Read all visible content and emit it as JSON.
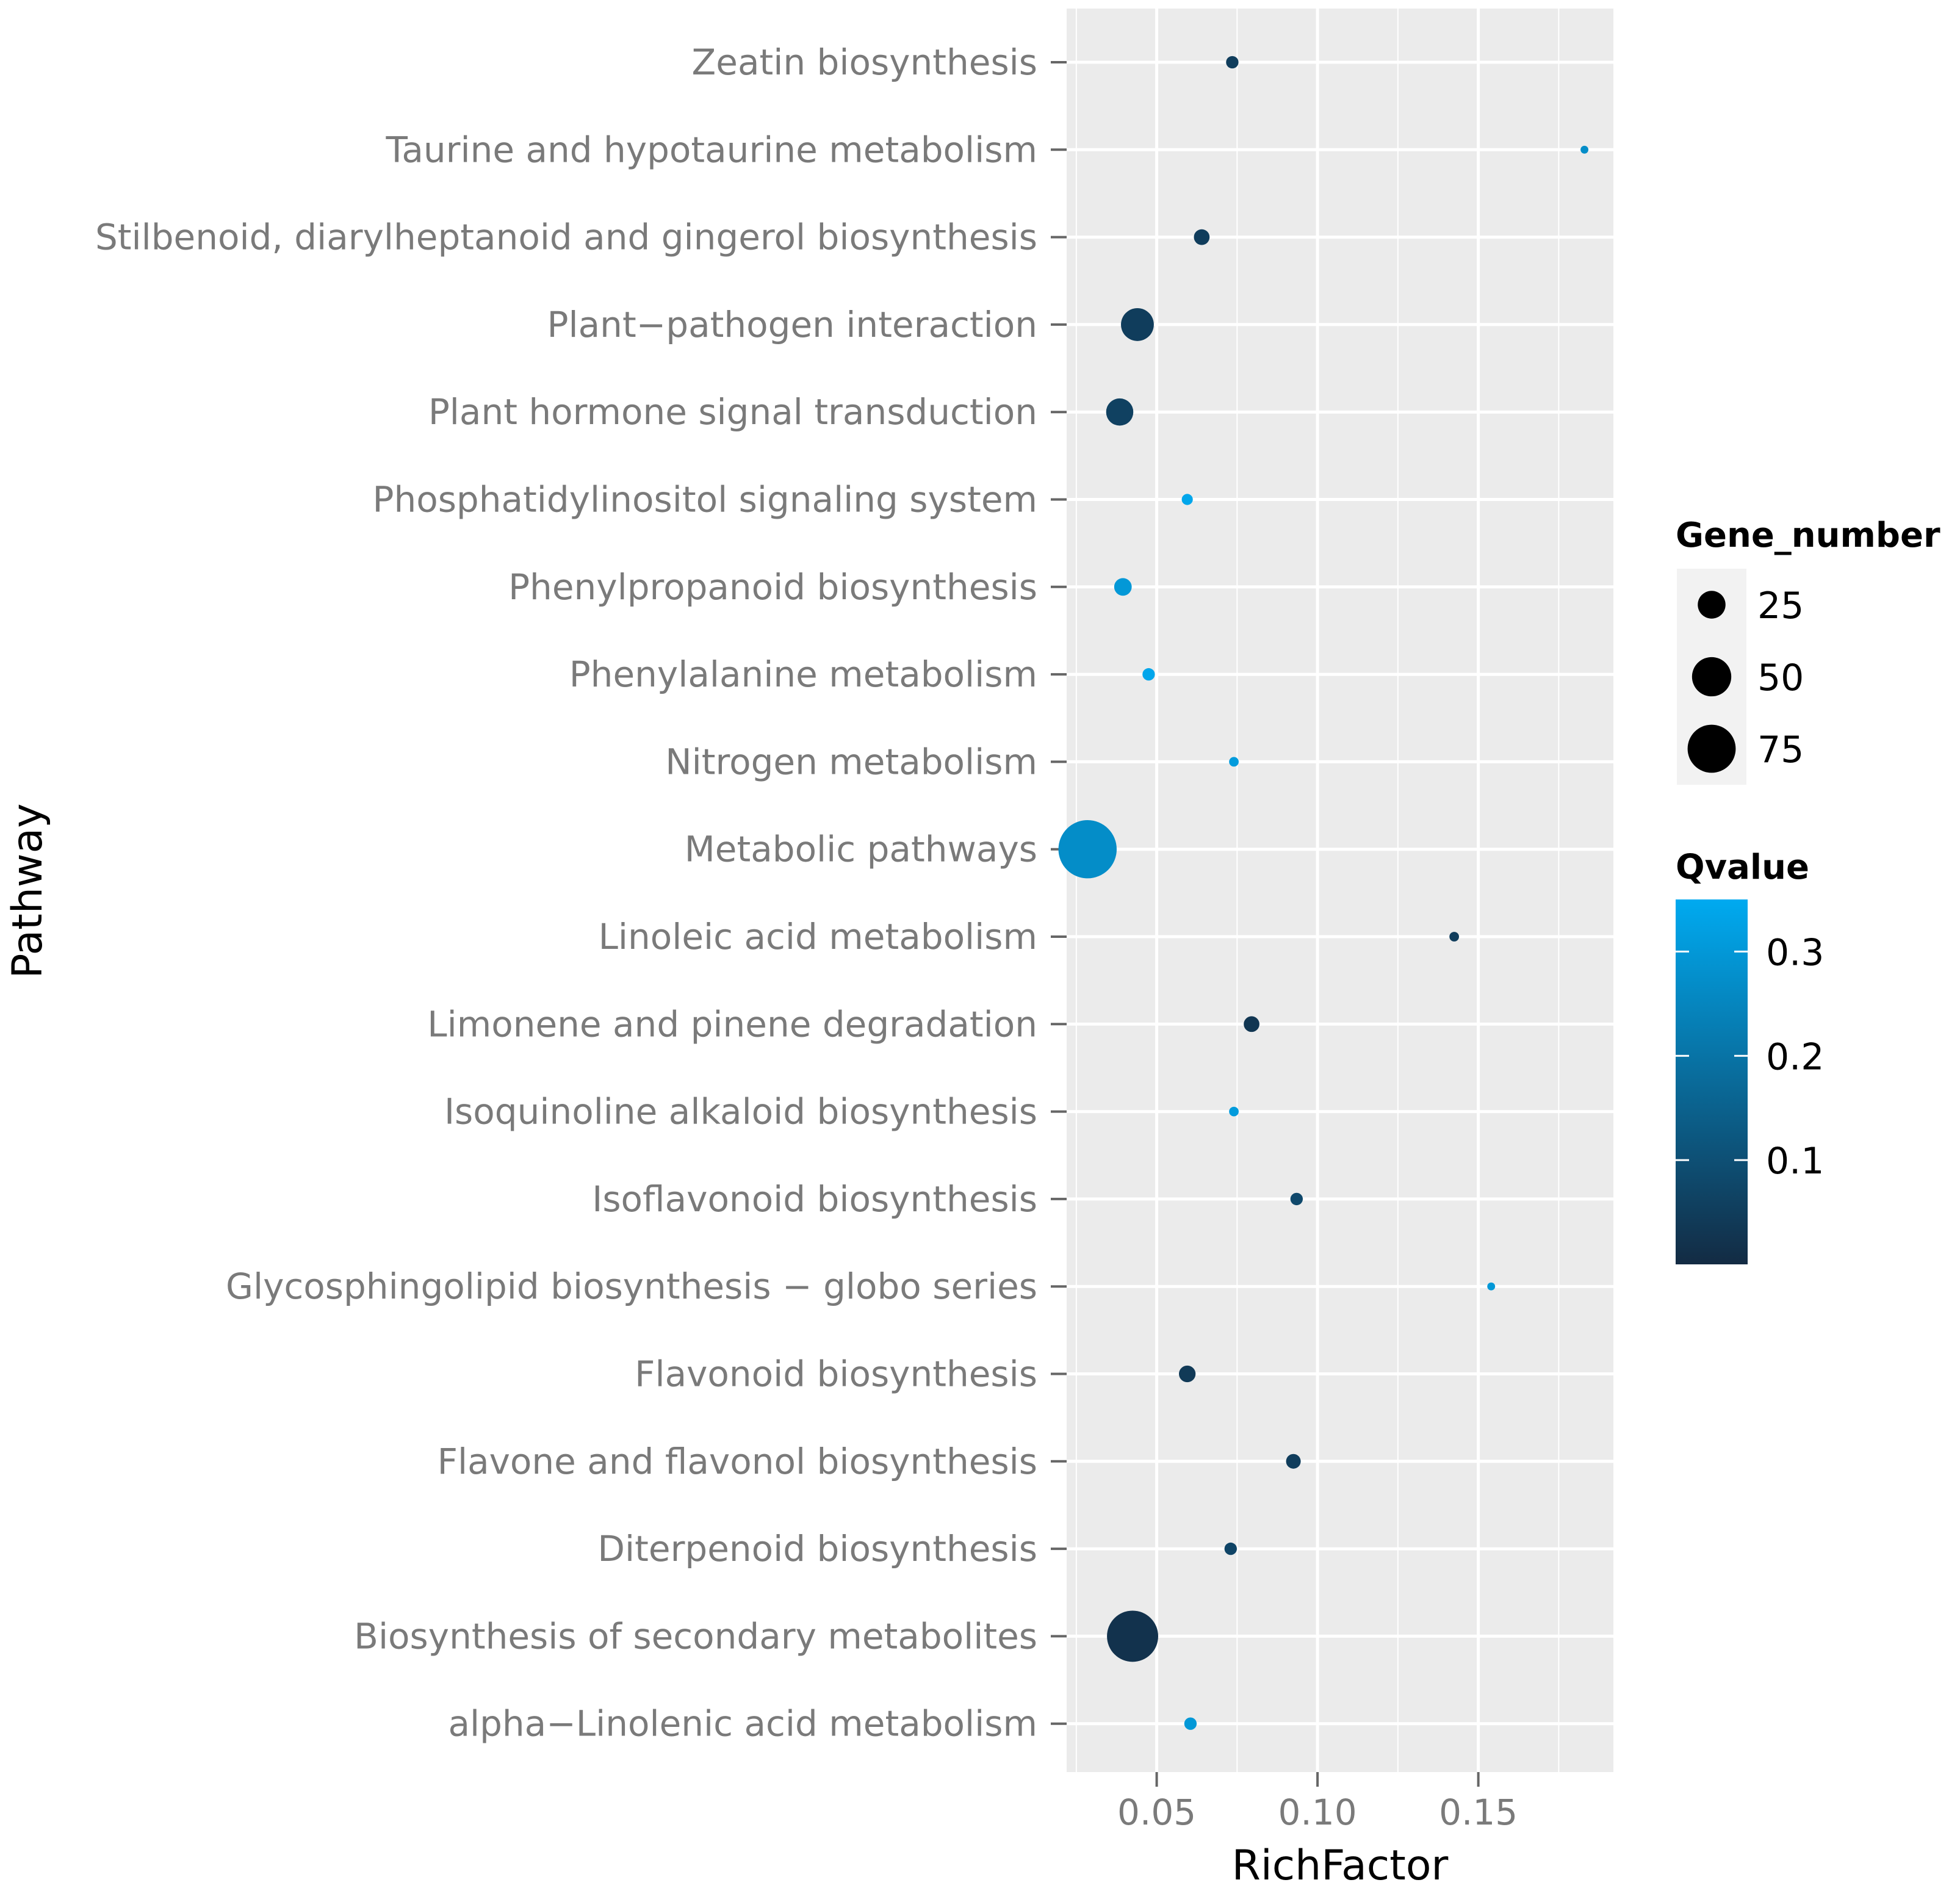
{
  "chart_data": {
    "type": "scatter",
    "xlabel": "RichFactor",
    "ylabel": "Pathway",
    "xlim": [
      0.022,
      0.192
    ],
    "x_ticks": [
      0.05,
      0.1,
      0.15
    ],
    "x_tick_labels": [
      "0.05",
      "0.10",
      "0.15"
    ],
    "grid": true,
    "legend_position": "right",
    "categories": [
      "Zeatin biosynthesis",
      "Taurine and hypotaurine metabolism",
      "Stilbenoid, diarylheptanoid and gingerol biosynthesis",
      "Plant−pathogen interaction",
      "Plant hormone signal transduction",
      "Phosphatidylinositol signaling system",
      "Phenylpropanoid biosynthesis",
      "Phenylalanine metabolism",
      "Nitrogen metabolism",
      "Metabolic pathways",
      "Linoleic acid metabolism",
      "Limonene and pinene degradation",
      "Isoquinoline alkaloid biosynthesis",
      "Isoflavonoid biosynthesis",
      "Glycosphingolipid biosynthesis − globo series",
      "Flavonoid biosynthesis",
      "Flavone and flavonol biosynthesis",
      "Diterpenoid biosynthesis",
      "Biosynthesis of secondary metabolites",
      "alpha−Linolenic acid metabolism"
    ],
    "points": [
      {
        "pathway": "Zeatin biosynthesis",
        "rich_factor": 0.0735,
        "gene_number": 5,
        "qvalue": 0.05
      },
      {
        "pathway": "Taurine and hypotaurine metabolism",
        "rich_factor": 0.183,
        "gene_number": 2,
        "qvalue": 0.27
      },
      {
        "pathway": "Stilbenoid, diarylheptanoid and gingerol biosynthesis",
        "rich_factor": 0.064,
        "gene_number": 8,
        "qvalue": 0.05
      },
      {
        "pathway": "Plant−pathogen interaction",
        "rich_factor": 0.044,
        "gene_number": 35,
        "qvalue": 0.05
      },
      {
        "pathway": "Plant hormone signal transduction",
        "rich_factor": 0.0385,
        "gene_number": 24,
        "qvalue": 0.06
      },
      {
        "pathway": "Phosphatidylinositol signaling system",
        "rich_factor": 0.0595,
        "gene_number": 4,
        "qvalue": 0.34
      },
      {
        "pathway": "Phenylpropanoid biosynthesis",
        "rich_factor": 0.0395,
        "gene_number": 10,
        "qvalue": 0.3
      },
      {
        "pathway": "Phenylalanine metabolism",
        "rich_factor": 0.0475,
        "gene_number": 5,
        "qvalue": 0.34
      },
      {
        "pathway": "Nitrogen metabolism",
        "rich_factor": 0.074,
        "gene_number": 3,
        "qvalue": 0.31
      },
      {
        "pathway": "Metabolic pathways",
        "rich_factor": 0.0285,
        "gene_number": 110,
        "qvalue": 0.27
      },
      {
        "pathway": "Linoleic acid metabolism",
        "rich_factor": 0.1425,
        "gene_number": 3,
        "qvalue": 0.05
      },
      {
        "pathway": "Limonene and pinene degradation",
        "rich_factor": 0.0795,
        "gene_number": 8,
        "qvalue": 0.03
      },
      {
        "pathway": "Isoquinoline alkaloid biosynthesis",
        "rich_factor": 0.074,
        "gene_number": 3,
        "qvalue": 0.31
      },
      {
        "pathway": "Isoflavonoid biosynthesis",
        "rich_factor": 0.0935,
        "gene_number": 5,
        "qvalue": 0.08
      },
      {
        "pathway": "Glycosphingolipid biosynthesis − globo series",
        "rich_factor": 0.154,
        "gene_number": 2,
        "qvalue": 0.3
      },
      {
        "pathway": "Flavonoid biosynthesis",
        "rich_factor": 0.0595,
        "gene_number": 9,
        "qvalue": 0.04
      },
      {
        "pathway": "Flavone and flavonol biosynthesis",
        "rich_factor": 0.0925,
        "gene_number": 7,
        "qvalue": 0.05
      },
      {
        "pathway": "Diterpenoid biosynthesis",
        "rich_factor": 0.073,
        "gene_number": 5,
        "qvalue": 0.07
      },
      {
        "pathway": "Biosynthesis of secondary metabolites",
        "rich_factor": 0.0425,
        "gene_number": 85,
        "qvalue": 0.02
      },
      {
        "pathway": "alpha−Linolenic acid metabolism",
        "rich_factor": 0.0605,
        "gene_number": 5,
        "qvalue": 0.3
      }
    ],
    "size_legend": {
      "title": "Gene_number",
      "values": [
        25,
        50,
        75
      ],
      "labels": [
        "25",
        "50",
        "75"
      ]
    },
    "color_legend": {
      "title": "Qvalue",
      "range": [
        0.0,
        0.35
      ],
      "ticks": [
        0.1,
        0.2,
        0.3
      ],
      "tick_labels": [
        "0.1",
        "0.2",
        "0.3"
      ],
      "low_color": "#132b43",
      "high_color": "#00aaf0"
    },
    "colors": {
      "panel_background": "#ebebeb",
      "grid": "#ffffff",
      "tick_mark": "#666666"
    }
  }
}
